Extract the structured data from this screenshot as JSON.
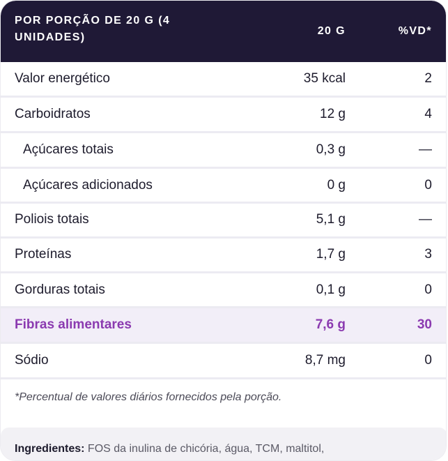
{
  "header": {
    "title": "POR PORÇÃO DE 20 G (4 UNIDADES)",
    "qty_label": "20 G",
    "vd_label": "%VD*"
  },
  "rows": [
    {
      "name": "Valor energético",
      "qty": "35 kcal",
      "vd": "2"
    },
    {
      "name": "Carboidratos",
      "qty": "12 g",
      "vd": "4"
    },
    {
      "name": "Açúcares totais",
      "qty": "0,3 g",
      "vd": "—"
    },
    {
      "name": "Açúcares adicionados",
      "qty": "0 g",
      "vd": "0"
    },
    {
      "name": "Poliois totais",
      "qty": "5,1 g",
      "vd": "—"
    },
    {
      "name": "Proteínas",
      "qty": "1,7 g",
      "vd": "3"
    },
    {
      "name": "Gorduras totais",
      "qty": "0,1 g",
      "vd": "0"
    },
    {
      "name": "Fibras alimentares",
      "qty": "7,6 g",
      "vd": "30"
    },
    {
      "name": "Sódio",
      "qty": "8,7 mg",
      "vd": "0"
    }
  ],
  "footnote": "*Percentual de valores diários fornecidos pela porção.",
  "ingredients": {
    "label": "Ingredientes:",
    "text": " FOS da inulina de chicória, água, TCM, maltitol,"
  },
  "colors": {
    "header_bg": "#1f1936",
    "highlight_text": "#8b3ab0",
    "highlight_bg": "#f2eef8"
  }
}
